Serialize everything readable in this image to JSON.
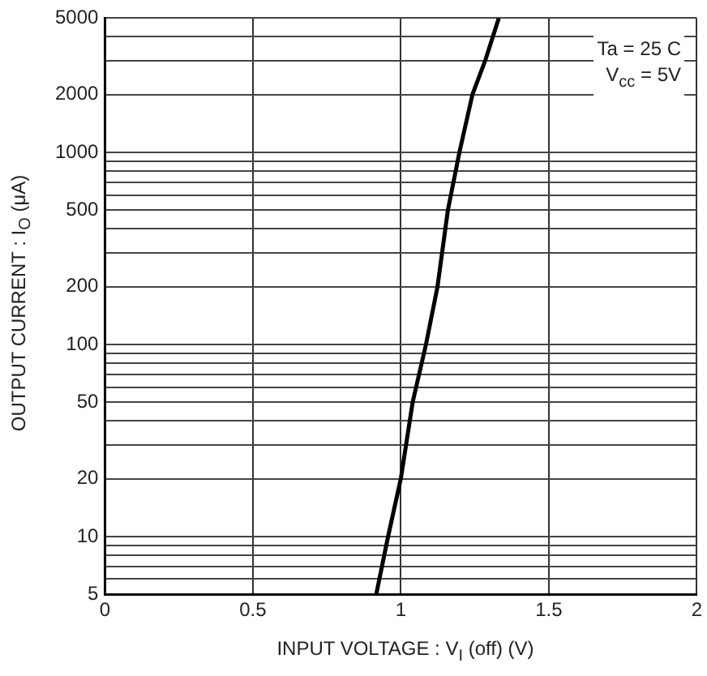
{
  "chart_data": {
    "type": "line",
    "xlabel": "INPUT VOLTAGE : V$_{I}$ (off)   (V)",
    "ylabel": "OUTPUT CURRENT : I$_{O}$ (μA)",
    "annotations": [
      "Ta = 25 C",
      "V$_{cc}$ = 5V"
    ],
    "series": [
      {
        "color": "#000000",
        "x": [
          0.917,
          0.957,
          1.0,
          1.04,
          1.085,
          1.124,
          1.159,
          1.198,
          1.242,
          1.285,
          1.331
        ],
        "values": [
          5,
          10,
          20,
          50,
          100,
          200,
          500,
          1000,
          2000,
          3000,
          5000
        ]
      }
    ],
    "log": "y",
    "xlim": [
      0,
      2
    ],
    "xticks": [
      0,
      0.5,
      1,
      1.5,
      2
    ],
    "ylim": [
      5,
      5000
    ],
    "yticks": [
      5,
      {
        "value": 6,
        "label": null
      },
      {
        "value": 7,
        "label": null
      },
      {
        "value": 8,
        "label": null
      },
      {
        "value": 9,
        "label": null
      },
      10,
      20,
      {
        "value": 30,
        "label": null
      },
      {
        "value": 40,
        "label": null
      },
      50,
      {
        "value": 60,
        "label": null
      },
      {
        "value": 70,
        "label": null
      },
      {
        "value": 80,
        "label": null
      },
      {
        "value": 90,
        "label": null
      },
      100,
      200,
      {
        "value": 300,
        "label": null
      },
      {
        "value": 400,
        "label": null
      },
      500,
      {
        "value": 600,
        "label": null
      },
      {
        "value": 700,
        "label": null
      },
      {
        "value": 800,
        "label": null
      },
      {
        "value": 900,
        "label": null
      },
      1000,
      2000,
      {
        "value": 3000,
        "label": null
      },
      {
        "value": 4000,
        "label": null
      },
      5000
    ],
    "grid": true,
    "legend": false,
    "marker": "none",
    "line_style": "solid"
  }
}
